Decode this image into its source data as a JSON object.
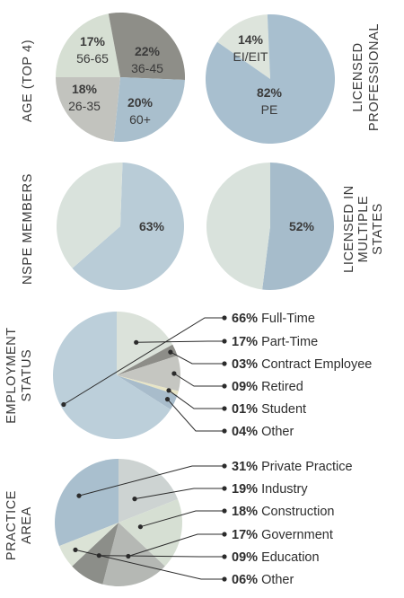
{
  "chart_data": [
    {
      "type": "pie",
      "title": "AGE (TOP 4)",
      "slices": [
        {
          "label": "56-65",
          "value": 17,
          "pct": "17%",
          "color": "#d6dfd3"
        },
        {
          "label": "36-45",
          "value": 22,
          "pct": "22%",
          "color": "#8e8e88"
        },
        {
          "label": "60+",
          "value": 20,
          "pct": "20%",
          "color": "#a9bfcd"
        },
        {
          "label": "26-35",
          "value": 18,
          "pct": "18%",
          "color": "#c2c3be"
        }
      ]
    },
    {
      "type": "pie",
      "title": "LICENSED PROFESSIONAL",
      "slices": [
        {
          "label": "EI/EIT",
          "value": 14,
          "pct": "14%",
          "color": "#dde4dc"
        },
        {
          "label": "PE",
          "value": 82,
          "pct": "82%",
          "color": "#a8bfcf"
        }
      ]
    },
    {
      "type": "pie",
      "title": "NSPE MEMBERS",
      "slices": [
        {
          "label": "",
          "value": 63,
          "pct": "63%",
          "color": "#b9ccd7"
        },
        {
          "label": "",
          "value": 37,
          "pct": "",
          "color": "#d9e2dc"
        }
      ]
    },
    {
      "type": "pie",
      "title": "LICENSED IN MULTIPLE STATES",
      "slices": [
        {
          "label": "",
          "value": 52,
          "pct": "52%",
          "color": "#a6bccb"
        },
        {
          "label": "",
          "value": 48,
          "pct": "",
          "color": "#d9e2dc"
        }
      ]
    },
    {
      "type": "pie",
      "title": "EMPLOYMENT STATUS",
      "slices": [
        {
          "label": "Full-Time",
          "value": 66,
          "pct": "66%",
          "color": "#bccfda"
        },
        {
          "label": "Part-Time",
          "value": 17,
          "pct": "17%",
          "color": "#dbe2da"
        },
        {
          "label": "Contract Employee",
          "value": 3,
          "pct": "03%",
          "color": "#8d8d88"
        },
        {
          "label": "Retired",
          "value": 9,
          "pct": "09%",
          "color": "#c5c6c1"
        },
        {
          "label": "Student",
          "value": 1,
          "pct": "01%",
          "color": "#e8e5c6"
        },
        {
          "label": "Other",
          "value": 4,
          "pct": "04%",
          "color": "#a8bccb"
        }
      ]
    },
    {
      "type": "pie",
      "title": "PRACTICE AREA",
      "slices": [
        {
          "label": "Private Practice",
          "value": 31,
          "pct": "31%",
          "color": "#a9bfce"
        },
        {
          "label": "Industry",
          "value": 19,
          "pct": "19%",
          "color": "#cdd3d2"
        },
        {
          "label": "Construction",
          "value": 18,
          "pct": "18%",
          "color": "#d6dfd3"
        },
        {
          "label": "Government",
          "value": 17,
          "pct": "17%",
          "color": "#b5b8b4"
        },
        {
          "label": "Education",
          "value": 9,
          "pct": "09%",
          "color": "#8c8e89"
        },
        {
          "label": "Other",
          "value": 6,
          "pct": "06%",
          "color": "#dbe3d6"
        }
      ]
    }
  ]
}
